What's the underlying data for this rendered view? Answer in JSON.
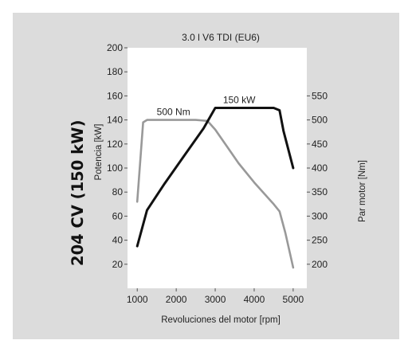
{
  "headline": "204 CV (150 kW)",
  "chart_data": {
    "type": "line",
    "title": "3.0 l V6 TDI (EU6)",
    "xlabel": "Revoluciones del motor [rpm]",
    "ylabel_left": "Potencia [kW]",
    "ylabel_right": "Par motor [Nm]",
    "xlim": [
      750,
      5350
    ],
    "x_ticks": [
      1000,
      2000,
      3000,
      4000,
      5000
    ],
    "ylim_left": [
      0,
      200
    ],
    "y_ticks_left": [
      20,
      40,
      60,
      80,
      100,
      120,
      140,
      160,
      180,
      200
    ],
    "ylim_right": [
      150,
      650
    ],
    "y_ticks_right": [
      200,
      250,
      300,
      350,
      400,
      450,
      500,
      550
    ],
    "grid": false,
    "series": [
      {
        "axis": "left",
        "color": "#111111",
        "x": [
          1000,
          1250,
          1700,
          2200,
          2700,
          3000,
          3500,
          4000,
          4500,
          4650,
          4750,
          5000
        ],
        "y": [
          35,
          65,
          87,
          110,
          133,
          150,
          150,
          150,
          150,
          148,
          131,
          100
        ]
      },
      {
        "axis": "right",
        "color": "#999999",
        "x": [
          1000,
          1150,
          1250,
          1500,
          2000,
          2500,
          2800,
          3000,
          3300,
          3600,
          4000,
          4500,
          4650,
          4800,
          5000
        ],
        "y": [
          330,
          495,
          500,
          500,
          500,
          500,
          498,
          480,
          445,
          410,
          370,
          325,
          310,
          265,
          193
        ]
      }
    ],
    "annotations": [
      {
        "text": "500 Nm",
        "x": 1500,
        "y_axis": "right",
        "y": 500
      },
      {
        "text": "150 kW",
        "x": 3200,
        "y_axis": "left",
        "y": 150
      }
    ]
  }
}
